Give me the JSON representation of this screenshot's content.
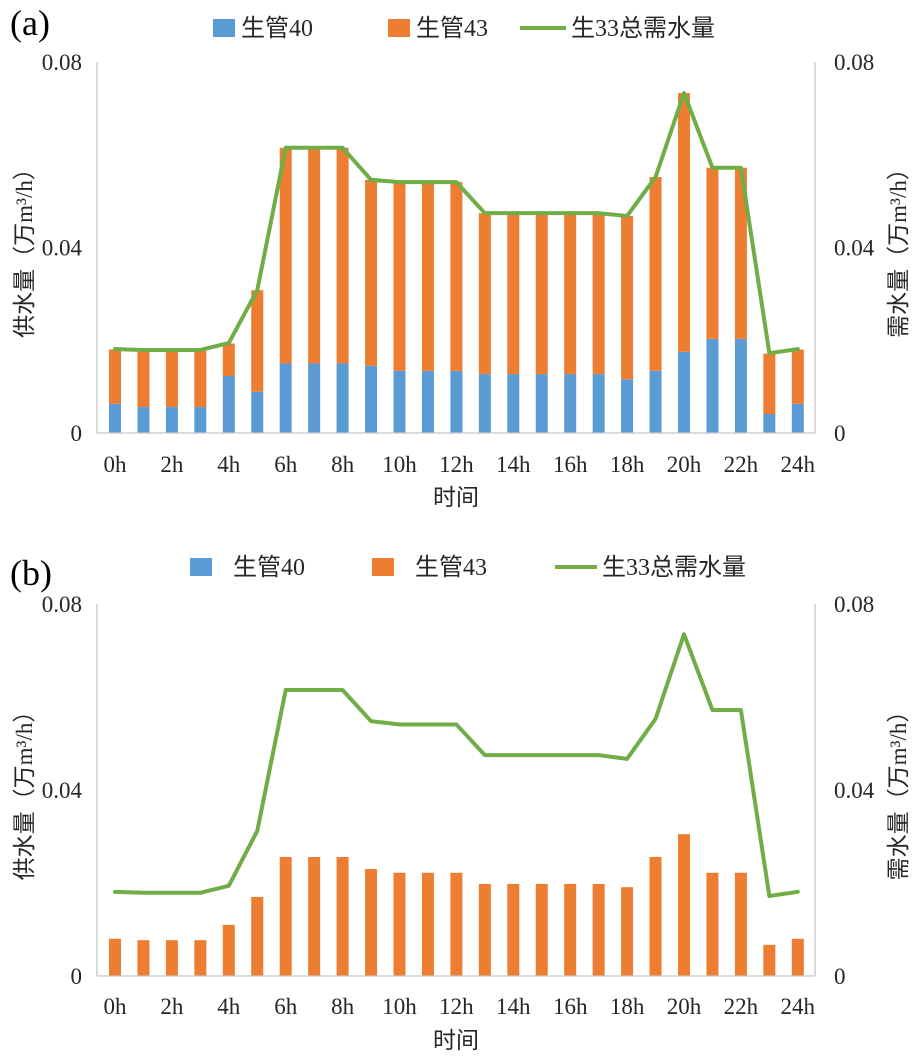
{
  "chart_data": [
    {
      "type": "bar",
      "panel_label": "(a)",
      "stacked": true,
      "x": [
        0,
        1,
        2,
        3,
        4,
        5,
        6,
        7,
        8,
        9,
        10,
        11,
        12,
        13,
        14,
        15,
        16,
        17,
        18,
        19,
        20,
        21,
        22,
        23,
        24
      ],
      "xticks": [
        0,
        2,
        4,
        6,
        8,
        10,
        12,
        14,
        16,
        18,
        20,
        22,
        24
      ],
      "xtick_labels": [
        "0h",
        "2h",
        "4h",
        "6h",
        "8h",
        "10h",
        "12h",
        "14h",
        "16h",
        "18h",
        "20h",
        "22h",
        "24h"
      ],
      "xlabel": "时间",
      "ylabel": "供水量（万m³/h）",
      "y2label": "需水量（万m³/h）",
      "ylim": [
        0,
        0.08
      ],
      "y2lim": [
        0,
        0.08
      ],
      "yticks": [
        0,
        0.04,
        0.08
      ],
      "ytick_labels": [
        "0",
        "0.04",
        "0.08"
      ],
      "y2ticks": [
        0,
        0.04,
        0.08
      ],
      "y2tick_labels": [
        "0",
        "0.04",
        "0.08"
      ],
      "grid": false,
      "legend_position": "top",
      "series": [
        {
          "name": "生管40",
          "type": "bar",
          "color": "#5B9BD5",
          "values": [
            0.0063,
            0.0056,
            0.0056,
            0.0056,
            0.0123,
            0.0089,
            0.015,
            0.015,
            0.015,
            0.0145,
            0.0134,
            0.0134,
            0.0134,
            0.0127,
            0.0127,
            0.0127,
            0.0127,
            0.0127,
            0.0116,
            0.0134,
            0.0175,
            0.0203,
            0.0203,
            0.0041,
            0.0063
          ]
        },
        {
          "name": "生管43",
          "type": "bar",
          "color": "#ED7D31",
          "values": [
            0.0117,
            0.0124,
            0.0124,
            0.0124,
            0.007,
            0.0219,
            0.0465,
            0.0465,
            0.0465,
            0.0401,
            0.0407,
            0.0407,
            0.0407,
            0.0347,
            0.0347,
            0.0347,
            0.0347,
            0.0347,
            0.0352,
            0.0418,
            0.0558,
            0.0369,
            0.0369,
            0.013,
            0.0117
          ]
        },
        {
          "name": "生33总需水量",
          "type": "line",
          "color": "#70AD47",
          "values": [
            0.0181,
            0.0179,
            0.0179,
            0.0179,
            0.0194,
            0.0308,
            0.0615,
            0.0615,
            0.0615,
            0.0546,
            0.0541,
            0.0541,
            0.0541,
            0.0474,
            0.0474,
            0.0474,
            0.0474,
            0.0474,
            0.0468,
            0.0552,
            0.0733,
            0.0572,
            0.0572,
            0.0172,
            0.0181
          ]
        }
      ]
    },
    {
      "type": "bar",
      "panel_label": "(b)",
      "stacked": true,
      "x": [
        0,
        1,
        2,
        3,
        4,
        5,
        6,
        7,
        8,
        9,
        10,
        11,
        12,
        13,
        14,
        15,
        16,
        17,
        18,
        19,
        20,
        21,
        22,
        23,
        24
      ],
      "xticks": [
        0,
        2,
        4,
        6,
        8,
        10,
        12,
        14,
        16,
        18,
        20,
        22,
        24
      ],
      "xtick_labels": [
        "0h",
        "2h",
        "4h",
        "6h",
        "8h",
        "10h",
        "12h",
        "14h",
        "16h",
        "18h",
        "20h",
        "22h",
        "24h"
      ],
      "xlabel": "时间",
      "ylabel": "供水量（万m³/h）",
      "y2label": "需水量（万m³/h）",
      "ylim": [
        0,
        0.08
      ],
      "y2lim": [
        0,
        0.08
      ],
      "yticks": [
        0,
        0.04,
        0.08
      ],
      "ytick_labels": [
        "0",
        "0.04",
        "0.08"
      ],
      "y2ticks": [
        0,
        0.04,
        0.08
      ],
      "y2tick_labels": [
        "0",
        "0.04",
        "0.08"
      ],
      "grid": false,
      "legend_position": "top",
      "series": [
        {
          "name": "生管40",
          "type": "bar",
          "color": "#5B9BD5",
          "values": [
            0,
            0,
            0,
            0,
            0,
            0,
            0,
            0,
            0,
            0,
            0,
            0,
            0,
            0,
            0,
            0,
            0,
            0,
            0,
            0,
            0,
            0,
            0,
            0,
            0
          ]
        },
        {
          "name": "生管43",
          "type": "bar",
          "color": "#ED7D31",
          "values": [
            0.008,
            0.0077,
            0.0077,
            0.0077,
            0.011,
            0.017,
            0.0256,
            0.0256,
            0.0256,
            0.023,
            0.0222,
            0.0222,
            0.0222,
            0.0198,
            0.0198,
            0.0198,
            0.0198,
            0.0198,
            0.0191,
            0.0256,
            0.0305,
            0.0222,
            0.0222,
            0.0067,
            0.008
          ]
        },
        {
          "name": "生33总需水量",
          "type": "line",
          "color": "#70AD47",
          "values": [
            0.0181,
            0.0179,
            0.0179,
            0.0179,
            0.0194,
            0.0312,
            0.0615,
            0.0615,
            0.0615,
            0.0548,
            0.0541,
            0.0541,
            0.0541,
            0.0475,
            0.0475,
            0.0475,
            0.0475,
            0.0475,
            0.0467,
            0.0553,
            0.0735,
            0.0572,
            0.0572,
            0.0172,
            0.0181
          ]
        }
      ]
    }
  ]
}
